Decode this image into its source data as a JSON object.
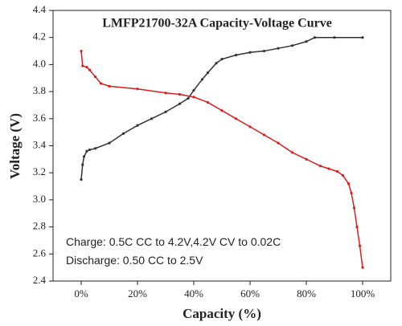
{
  "chart_data": {
    "type": "line",
    "title": "LMFP21700-32A Capacity-Voltage Curve",
    "x_label": "Capacity (%)",
    "y_label": "Voltage (V)",
    "annotations": [
      "Charge: 0.5C CC to 4.2V,4.2V CV to 0.02C",
      "Discharge: 0.50 CC to 2.5V"
    ],
    "xlim": [
      -10,
      110
    ],
    "xticks": [
      {
        "value": 0,
        "label": "0%"
      },
      {
        "value": 20,
        "label": "20%"
      },
      {
        "value": 40,
        "label": "40%"
      },
      {
        "value": 60,
        "label": "60%"
      },
      {
        "value": 80,
        "label": "80%"
      },
      {
        "value": 100,
        "label": "100%"
      }
    ],
    "ylim": [
      2.4,
      4.4
    ],
    "yticks": [
      2.4,
      2.6,
      2.8,
      {
        "value": 3,
        "label": "3.0"
      },
      3.2,
      3.4,
      3.6,
      3.8,
      {
        "value": 4,
        "label": "4.0"
      },
      4.2,
      4.4
    ],
    "series": [
      {
        "color": "#333333",
        "x": [
          0,
          0.5,
          1,
          2,
          3,
          5,
          10,
          15,
          20,
          25,
          30,
          35,
          38,
          40,
          43,
          45,
          48,
          50,
          55,
          60,
          65,
          70,
          75,
          80,
          83,
          90,
          100
        ],
        "values": [
          3.15,
          3.26,
          3.32,
          3.36,
          3.37,
          3.38,
          3.42,
          3.49,
          3.55,
          3.6,
          3.65,
          3.71,
          3.75,
          3.81,
          3.89,
          3.94,
          4.01,
          4.04,
          4.07,
          4.09,
          4.1,
          4.12,
          4.14,
          4.17,
          4.2,
          4.2,
          4.2
        ]
      },
      {
        "color": "#d42020",
        "x": [
          0,
          0.5,
          2,
          3,
          5,
          7,
          10,
          20,
          30,
          35,
          40,
          45,
          50,
          55,
          60,
          65,
          70,
          75,
          80,
          85,
          88,
          91,
          93,
          95,
          96,
          97,
          98,
          99,
          100
        ],
        "values": [
          4.1,
          3.99,
          3.98,
          3.96,
          3.91,
          3.86,
          3.84,
          3.82,
          3.79,
          3.78,
          3.76,
          3.72,
          3.66,
          3.6,
          3.54,
          3.48,
          3.42,
          3.35,
          3.3,
          3.25,
          3.23,
          3.21,
          3.18,
          3.12,
          3.05,
          2.94,
          2.8,
          2.66,
          2.5
        ]
      }
    ]
  }
}
